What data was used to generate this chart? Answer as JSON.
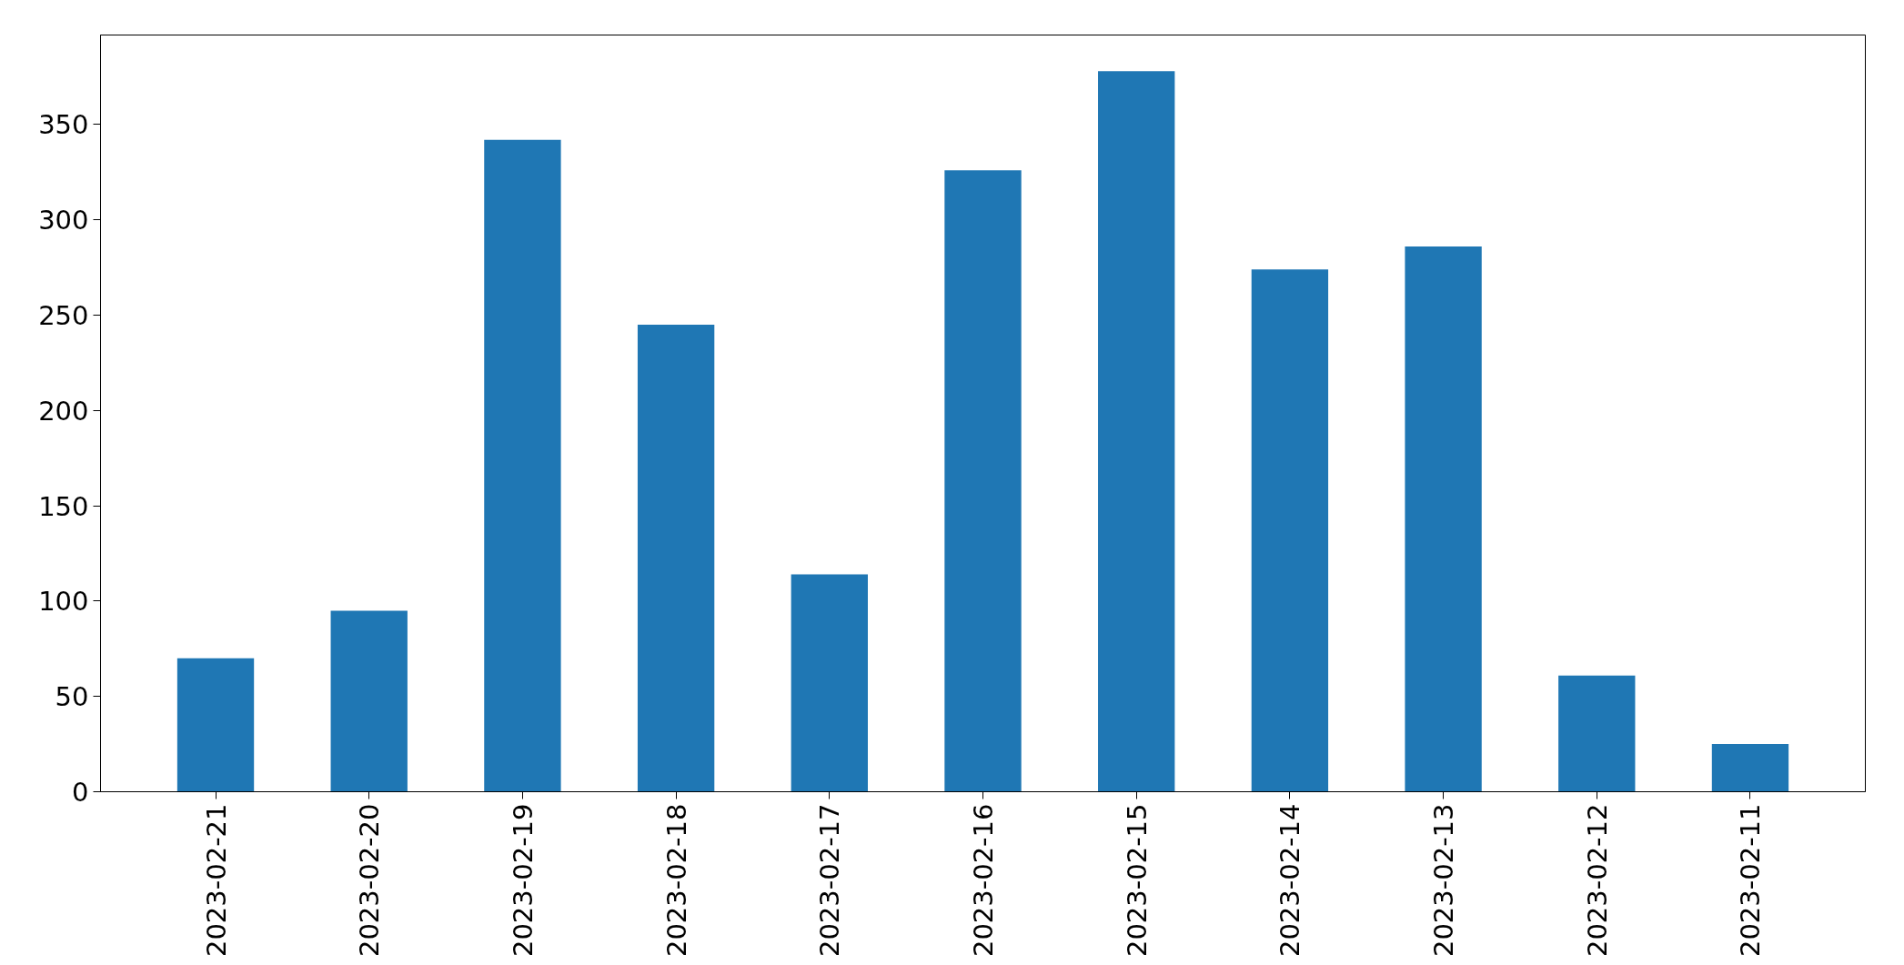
{
  "chart_data": {
    "type": "bar",
    "categories": [
      "2023-02-21",
      "2023-02-20",
      "2023-02-19",
      "2023-02-18",
      "2023-02-17",
      "2023-02-16",
      "2023-02-15",
      "2023-02-14",
      "2023-02-13",
      "2023-02-12",
      "2023-02-11"
    ],
    "values": [
      70,
      95,
      342,
      245,
      114,
      326,
      378,
      274,
      286,
      61,
      25
    ],
    "color": "#1f77b4",
    "ylim": [
      0,
      397
    ],
    "yticks": [
      0,
      50,
      100,
      150,
      200,
      250,
      300,
      350
    ],
    "grid": false
  }
}
